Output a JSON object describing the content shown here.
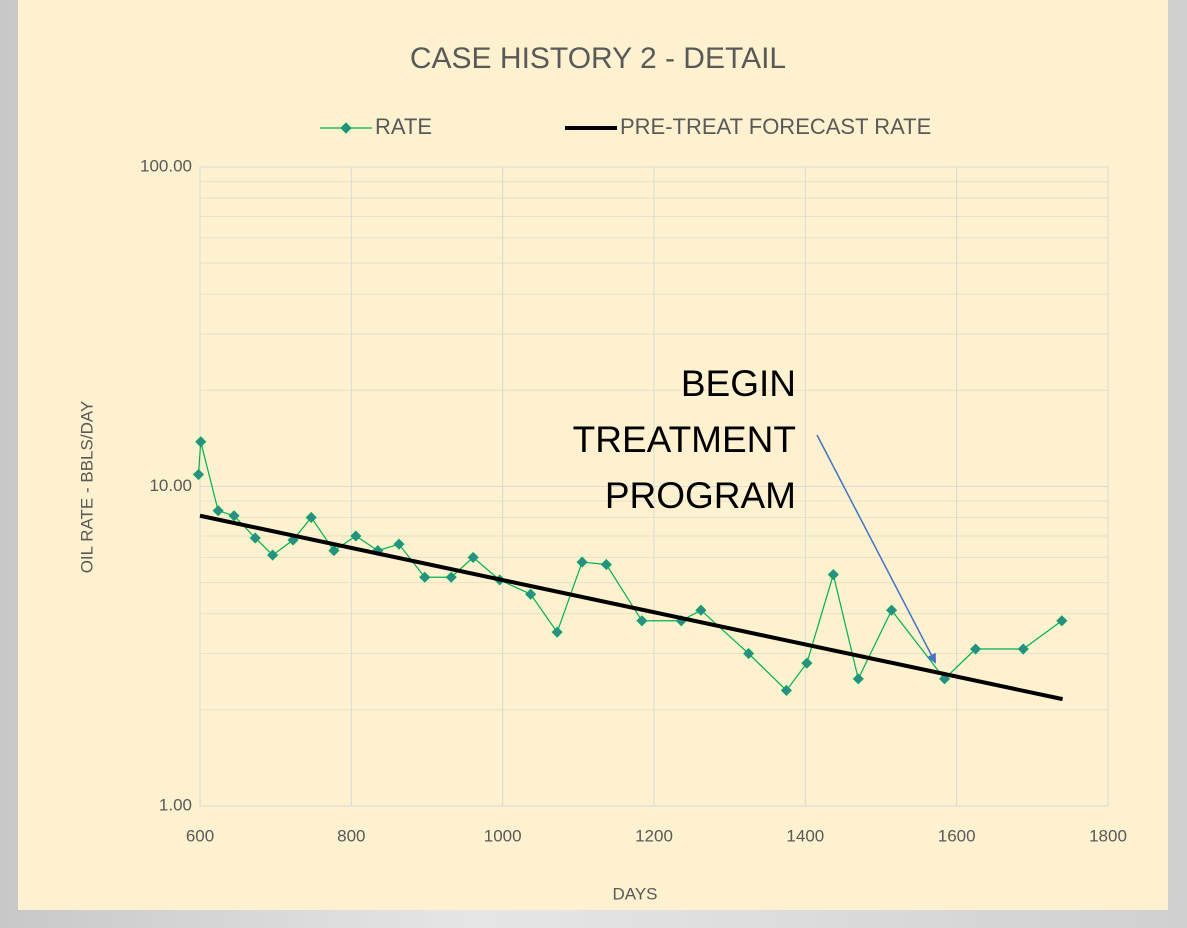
{
  "chart_data": {
    "type": "line",
    "title": "CASE HISTORY 2 - DETAIL",
    "x_label": "DAYS",
    "y_label": "OIL RATE - BBLS/DAY",
    "log_y": true,
    "grid": true,
    "legend": "top",
    "xlim": [
      600,
      1800
    ],
    "xticks": [
      600,
      800,
      1000,
      1200,
      1400,
      1600,
      1800
    ],
    "ylim": [
      1,
      100
    ],
    "yticks": [
      {
        "value": 1,
        "label": "1.00"
      },
      {
        "value": 10,
        "label": "10.00"
      },
      {
        "value": 100,
        "label": "100.00"
      }
    ],
    "series": [
      {
        "name": "RATE",
        "color": "#00b050",
        "marker_color": "#2e8b8b",
        "marker": "diamond",
        "x": [
          598,
          601,
          624,
          645,
          673,
          696,
          723,
          747,
          777,
          806,
          835,
          863,
          897,
          932,
          961,
          996,
          1037,
          1072,
          1105,
          1137,
          1184,
          1236,
          1262,
          1325,
          1375,
          1402,
          1437,
          1470,
          1514,
          1584,
          1625,
          1688,
          1739
        ],
        "values": [
          10.9,
          13.8,
          8.4,
          8.1,
          6.9,
          6.1,
          6.8,
          8.0,
          6.3,
          7.0,
          6.3,
          6.6,
          5.2,
          5.2,
          6.0,
          5.1,
          4.6,
          3.5,
          5.8,
          5.7,
          3.8,
          3.8,
          4.1,
          3.0,
          2.3,
          2.8,
          5.3,
          2.5,
          4.1,
          2.5,
          3.1,
          3.1,
          3.8
        ]
      },
      {
        "name": "PRE-TREAT FORECAST RATE",
        "color": "#000000",
        "x": [
          600,
          1740
        ],
        "values": [
          8.1,
          2.16
        ]
      }
    ],
    "annotation": [
      "BEGIN",
      "TREATMENT",
      "PROGRAM"
    ]
  }
}
